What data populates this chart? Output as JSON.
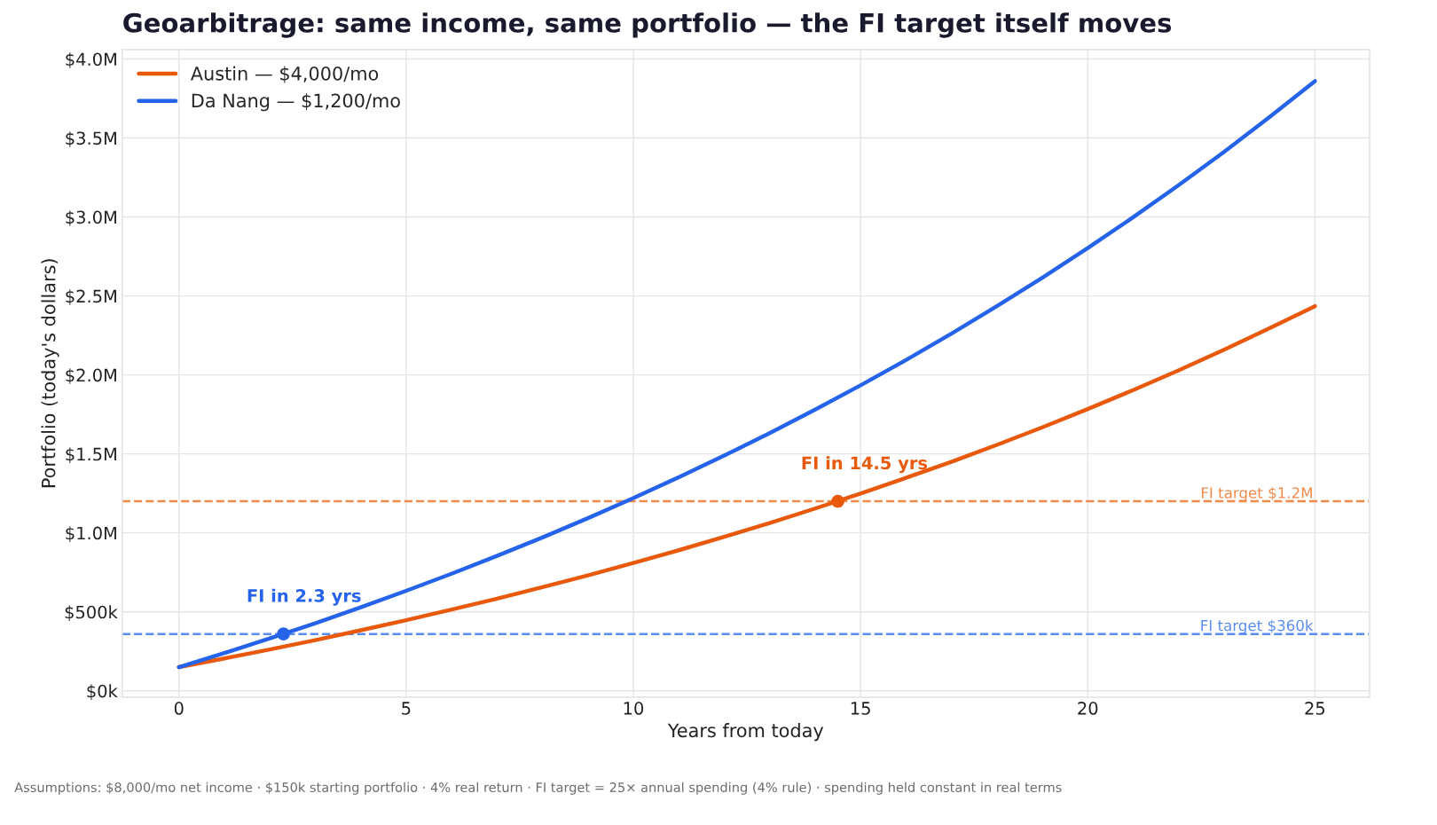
{
  "chart_data": {
    "type": "line",
    "title": "Geoarbitrage: same income, same portfolio — the FI target itself moves",
    "xlabel": "Years from today",
    "ylabel": "Portfolio (today's dollars)",
    "x": [
      0,
      1,
      2,
      3,
      4,
      5,
      6,
      7,
      8,
      9,
      10,
      11,
      12,
      13,
      14,
      15,
      16,
      17,
      18,
      19,
      20,
      21,
      22,
      23,
      24,
      25
    ],
    "series": [
      {
        "name": "Austin — $4,000/mo",
        "color": "#e8590c",
        "values": [
          150000,
          205000,
          262000,
          321000,
          383000,
          447000,
          514000,
          583000,
          656000,
          731000,
          809000,
          890000,
          975000,
          1062000,
          1154000,
          1249000,
          1348000,
          1450000,
          1557000,
          1668000,
          1784000,
          1904000,
          2029000,
          2159000,
          2295000,
          2435000
        ]
      },
      {
        "name": "Da Nang — $1,200/mo",
        "color": "#2563eb",
        "values": [
          150000,
          239000,
          332000,
          428000,
          528000,
          633000,
          741000,
          854000,
          971000,
          1093000,
          1220000,
          1352000,
          1489000,
          1631000,
          1780000,
          1934000,
          2094000,
          2261000,
          2435000,
          2615000,
          2803000,
          2998000,
          3201000,
          3412000,
          3632000,
          3860000
        ]
      },
      {
        "type": "scatter",
        "marker": "circle",
        "color": "#e8590c",
        "x": [
          14.5
        ],
        "values": [
          1200000
        ]
      },
      {
        "type": "scatter",
        "marker": "circle",
        "color": "#2563eb",
        "x": [
          2.3
        ],
        "values": [
          360000
        ]
      }
    ],
    "xlim": [
      -1.25,
      26.2
    ],
    "xticks": [
      0,
      5,
      10,
      15,
      20,
      25
    ],
    "ylim": [
      -40000,
      4060000
    ],
    "yticks": [
      {
        "value": 0,
        "label": "$0k"
      },
      {
        "value": 500000,
        "label": "$500k"
      },
      {
        "value": 1000000,
        "label": "$1.0M"
      },
      {
        "value": 1500000,
        "label": "$1.5M"
      },
      {
        "value": 2000000,
        "label": "$2.0M"
      },
      {
        "value": 2500000,
        "label": "$2.5M"
      },
      {
        "value": 3000000,
        "label": "$3.0M"
      },
      {
        "value": 3500000,
        "label": "$3.5M"
      },
      {
        "value": 4000000,
        "label": "$4.0M"
      }
    ],
    "ref_lines": [
      {
        "axis": "y",
        "value": 1200000,
        "label": "FI target $1.2M",
        "color": "#f08a4b",
        "line_style": "dashed"
      },
      {
        "axis": "y",
        "value": 360000,
        "label": "FI target $360k",
        "color": "#5b8def",
        "line_style": "dashed"
      }
    ],
    "annotations": [
      {
        "text": "FI in 14.5 yrs",
        "x": 14.5,
        "y": 1200000
      },
      {
        "text": "FI in 2.3 yrs",
        "x": 2.3,
        "y": 360000
      },
      "Assumptions: $8,000/mo net income · $150k starting portfolio · 4% real return · FI target = 25× annual spending (4% rule) · spending held constant in real terms"
    ],
    "grid": true,
    "legend": "top left",
    "line_style": "solid",
    "marker": "none"
  }
}
